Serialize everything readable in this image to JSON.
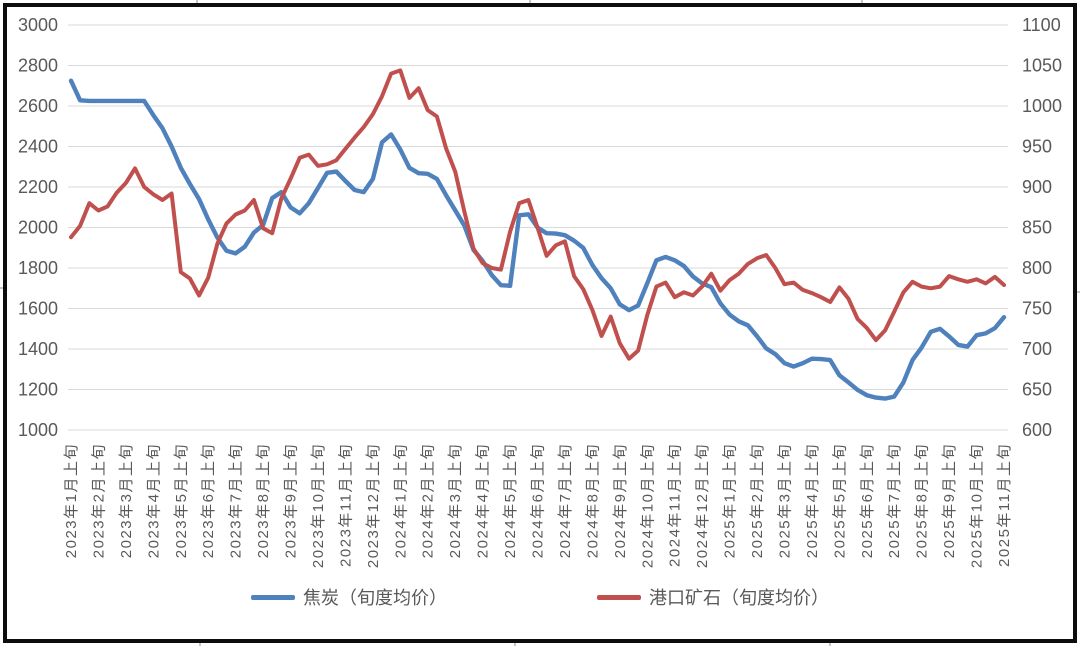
{
  "chart_data": {
    "type": "line",
    "title": "",
    "grid": true,
    "legend_position": "bottom",
    "points_per_month": 3,
    "x_tick_labels": [
      "2023年1月上旬",
      "2023年2月上旬",
      "2023年3月上旬",
      "2023年4月上旬",
      "2023年5月上旬",
      "2023年6月上旬",
      "2023年7月上旬",
      "2023年8月上旬",
      "2023年9月上旬",
      "2023年10月上旬",
      "2023年11月上旬",
      "2023年12月上旬",
      "2024年1月上旬",
      "2024年2月上旬",
      "2024年3月上旬",
      "2024年4月上旬",
      "2024年5月上旬",
      "2024年6月上旬",
      "2024年7月上旬",
      "2024年8月上旬",
      "2024年9月上旬",
      "2024年10月上旬",
      "2024年11月上旬",
      "2024年12月上旬",
      "2025年1月上旬",
      "2025年2月上旬",
      "2025年3月上旬",
      "2025年4月上旬",
      "2025年5月上旬",
      "2025年6月上旬",
      "2025年7月上旬",
      "2025年8月上旬",
      "2025年9月上旬",
      "2025年10月上旬",
      "2025年11月上旬"
    ],
    "left_axis": {
      "min": 1000,
      "max": 3000,
      "step": 200,
      "ticks": [
        1000,
        1200,
        1400,
        1600,
        1800,
        2000,
        2200,
        2400,
        2600,
        2800,
        3000
      ]
    },
    "right_axis": {
      "min": 600,
      "max": 1100,
      "step": 50,
      "ticks": [
        600,
        650,
        700,
        750,
        800,
        850,
        900,
        950,
        1000,
        1050,
        1100
      ]
    },
    "series": [
      {
        "name": "焦炭（旬度均价）",
        "axis": "left",
        "color": "#4F81BD",
        "values": [
          2725,
          2628,
          2625,
          2625,
          2625,
          2625,
          2625,
          2625,
          2625,
          2555,
          2490,
          2400,
          2295,
          2215,
          2140,
          2040,
          1950,
          1885,
          1872,
          1905,
          1975,
          2012,
          2145,
          2175,
          2100,
          2070,
          2120,
          2195,
          2270,
          2276,
          2230,
          2185,
          2175,
          2240,
          2420,
          2460,
          2385,
          2295,
          2268,
          2265,
          2240,
          2160,
          2085,
          2010,
          1890,
          1835,
          1765,
          1715,
          1712,
          2060,
          2065,
          2000,
          1972,
          1970,
          1962,
          1935,
          1900,
          1815,
          1750,
          1700,
          1620,
          1592,
          1615,
          1725,
          1838,
          1855,
          1838,
          1810,
          1758,
          1724,
          1705,
          1625,
          1570,
          1537,
          1517,
          1463,
          1403,
          1375,
          1330,
          1313,
          1330,
          1352,
          1350,
          1345,
          1270,
          1235,
          1198,
          1172,
          1160,
          1155,
          1165,
          1235,
          1345,
          1408,
          1485,
          1500,
          1462,
          1420,
          1412,
          1468,
          1477,
          1503,
          1557
        ]
      },
      {
        "name": "港口矿石（旬度均价）",
        "axis": "right",
        "color": "#C0504D",
        "values": [
          838,
          852,
          880,
          871,
          876,
          893,
          905,
          923,
          900,
          891,
          884,
          892,
          795,
          787,
          766,
          788,
          830,
          855,
          866,
          871,
          884,
          849,
          843,
          886,
          910,
          936,
          940,
          926,
          928,
          933,
          947,
          961,
          974,
          990,
          1012,
          1040,
          1044,
          1010,
          1022,
          995,
          987,
          948,
          919,
          870,
          824,
          806,
          800,
          798,
          845,
          880,
          884,
          850,
          815,
          828,
          833,
          790,
          774,
          748,
          716,
          740,
          707,
          688,
          698,
          742,
          777,
          782,
          764,
          770,
          766,
          777,
          793,
          772,
          785,
          793,
          805,
          812,
          816,
          800,
          780,
          782,
          773,
          769,
          764,
          758,
          776,
          762,
          737,
          726,
          711,
          723,
          746,
          770,
          783,
          777,
          775,
          777,
          790,
          786,
          783,
          786,
          781,
          789,
          779
        ]
      }
    ]
  },
  "legend": {
    "coke_label": "焦炭（旬度均价）",
    "ore_label": "港口矿石（旬度均价）"
  },
  "colors": {
    "coke_line": "#4F81BD",
    "ore_line": "#C0504D",
    "axis_text": "#595959",
    "gridline": "#D9D9D9",
    "frame": "#0d0d0d"
  }
}
